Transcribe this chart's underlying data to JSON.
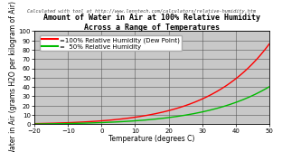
{
  "title_line1": "Amount of Water in Air at 100% Relative Humidity",
  "title_line2": "Across a Range of Temperatures",
  "subtitle": "Calculated with tool at http://www.lenntech.com/calculators/relative-humidity.htm",
  "xlabel": "Temperature (degrees C)",
  "ylabel": "Water in Air (grams H2O per kilogram of Air)",
  "xlim": [
    -20,
    50
  ],
  "ylim": [
    0,
    100
  ],
  "xticks": [
    -20,
    -10,
    0,
    10,
    20,
    30,
    40,
    50
  ],
  "yticks": [
    0,
    10,
    20,
    30,
    40,
    50,
    60,
    70,
    80,
    90,
    100
  ],
  "line1_color": "#ff0000",
  "line2_color": "#00bb00",
  "line1_label": "=100% Relative Humidity (Dew Point)",
  "line2_label": "=  50% Relative Humidity",
  "outer_bg_color": "#ffffff",
  "plot_bg_color": "#c8c8c8",
  "title_fontsize": 6.0,
  "subtitle_fontsize": 3.8,
  "axis_label_fontsize": 5.5,
  "tick_fontsize": 5.0,
  "legend_fontsize": 5.0
}
